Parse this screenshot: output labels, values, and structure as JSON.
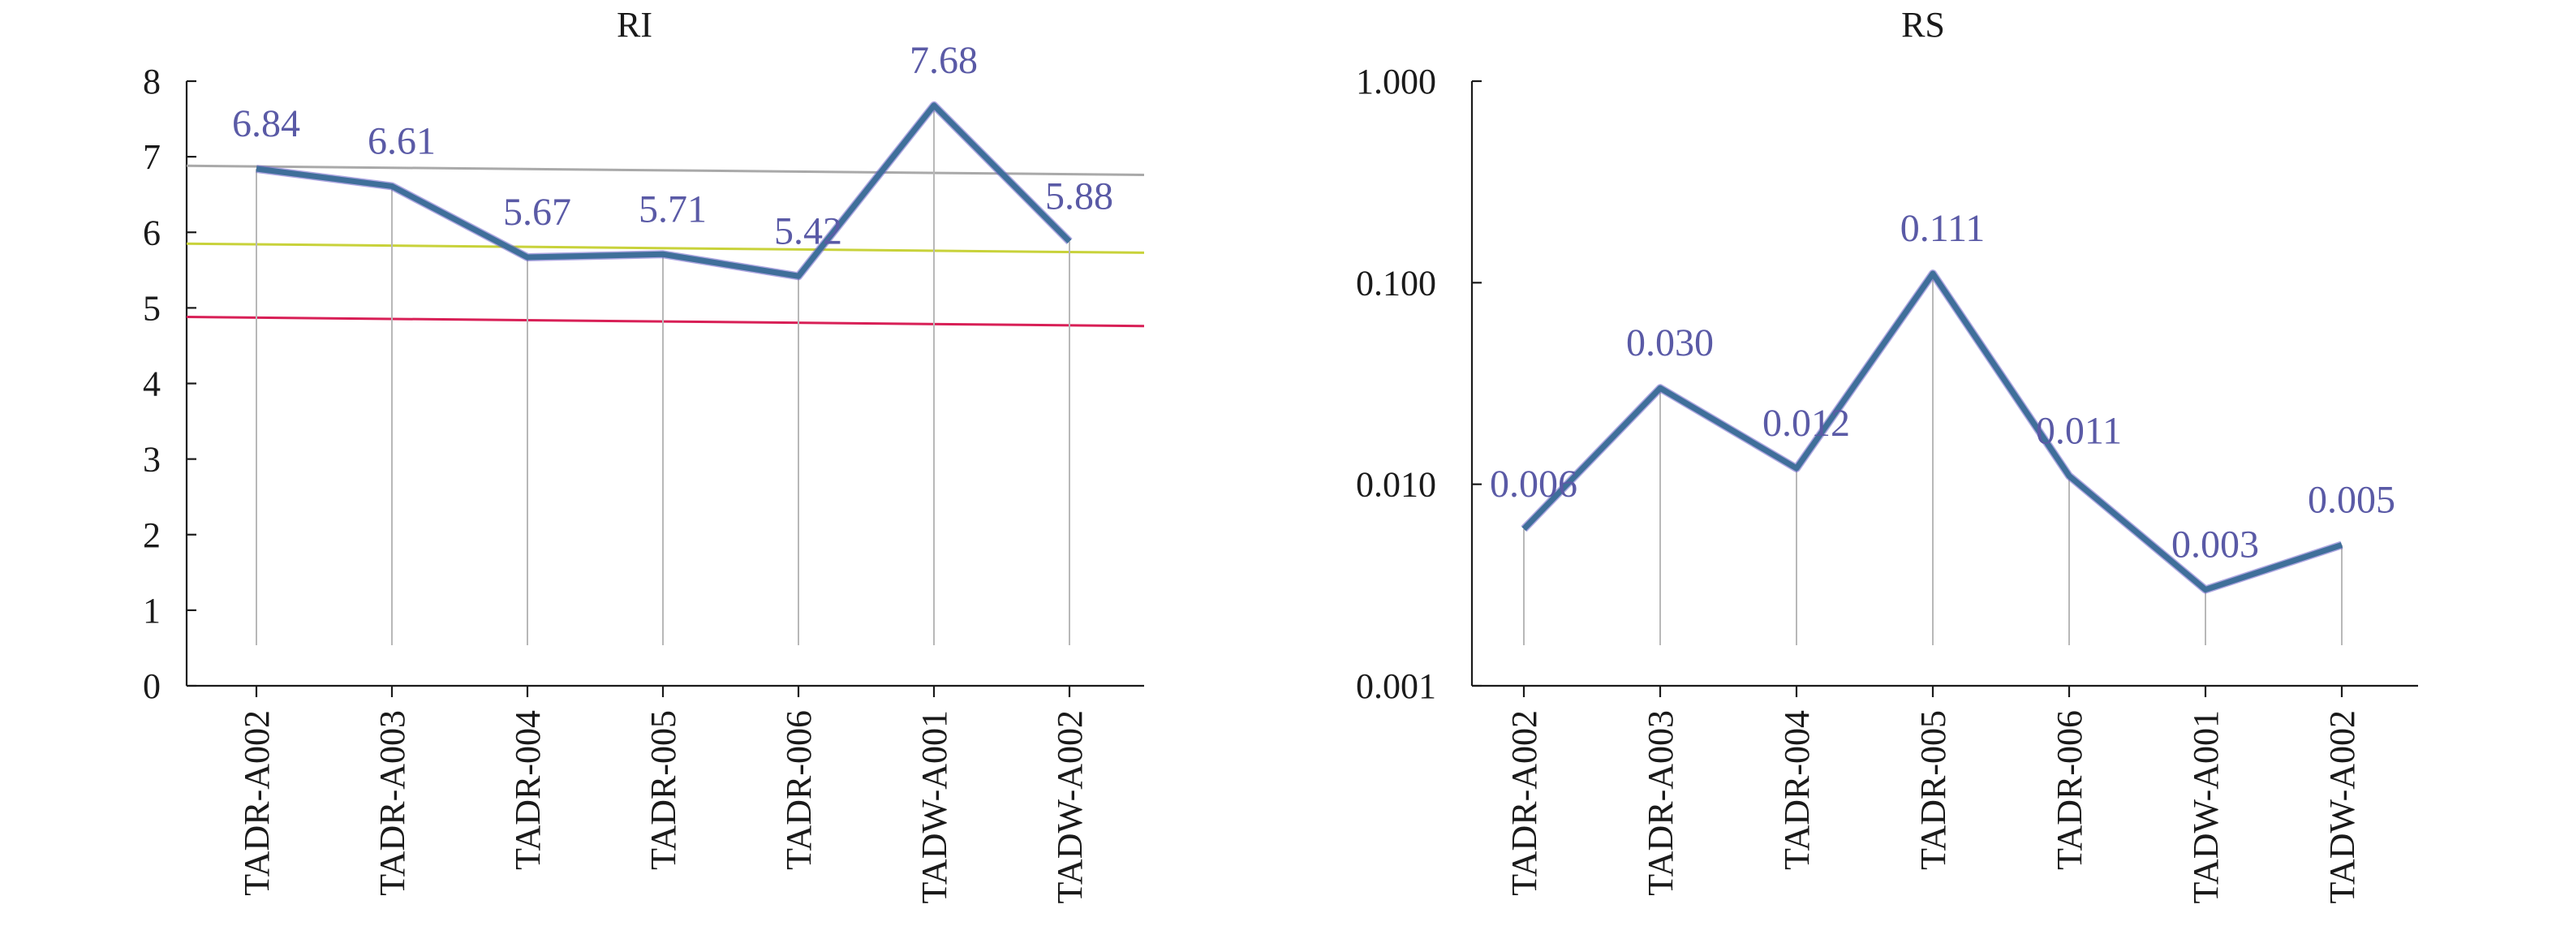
{
  "chart_data": [
    {
      "type": "line",
      "title": "RI",
      "categories": [
        "TADR-A002",
        "TADR-A003",
        "TADR-004",
        "TADR-005",
        "TADR-006",
        "TADW-A001",
        "TADW-A002"
      ],
      "series": [
        {
          "values": [
            6.84,
            6.61,
            5.67,
            5.71,
            5.42,
            7.68,
            5.88
          ]
        }
      ],
      "data_labels": [
        "6.84",
        "6.61",
        "5.67",
        "5.71",
        "5.42",
        "7.68",
        "5.88"
      ],
      "ylim": [
        0,
        8
      ],
      "y_ticks": [
        "0",
        "1",
        "2",
        "3",
        "4",
        "5",
        "6",
        "7",
        "8"
      ],
      "y_tick_values": [
        0,
        1,
        2,
        3,
        4,
        5,
        6,
        7,
        8
      ],
      "reference_lines": [
        {
          "start": 6.88,
          "end": 6.76,
          "color": "#a9a9a9"
        },
        {
          "start": 5.85,
          "end": 5.73,
          "color": "#c8d23a"
        },
        {
          "start": 4.88,
          "end": 4.76,
          "color": "#d81f56"
        }
      ],
      "line_color": "#3f6f9a",
      "label_color": "#5a5aa6",
      "grid": false
    },
    {
      "type": "line",
      "title": "RS",
      "categories": [
        "TADR-A002",
        "TADR-A003",
        "TADR-004",
        "TADR-005",
        "TADR-006",
        "TADW-A001",
        "TADW-A002"
      ],
      "series": [
        {
          "values": [
            0.006,
            0.03,
            0.012,
            0.111,
            0.011,
            0.003,
            0.005
          ]
        }
      ],
      "data_labels": [
        "0.006",
        "0.030",
        "0.012",
        "0.111",
        "0.011",
        "0.003",
        "0.005"
      ],
      "yscale": "log",
      "ylim": [
        0.001,
        1
      ],
      "y_ticks": [
        "0.001",
        "0.010",
        "0.100",
        "1.000"
      ],
      "y_tick_values": [
        0.001,
        0.01,
        0.1,
        1
      ],
      "line_color": "#3f6f9a",
      "label_color": "#5a5aa6",
      "grid": false
    }
  ]
}
